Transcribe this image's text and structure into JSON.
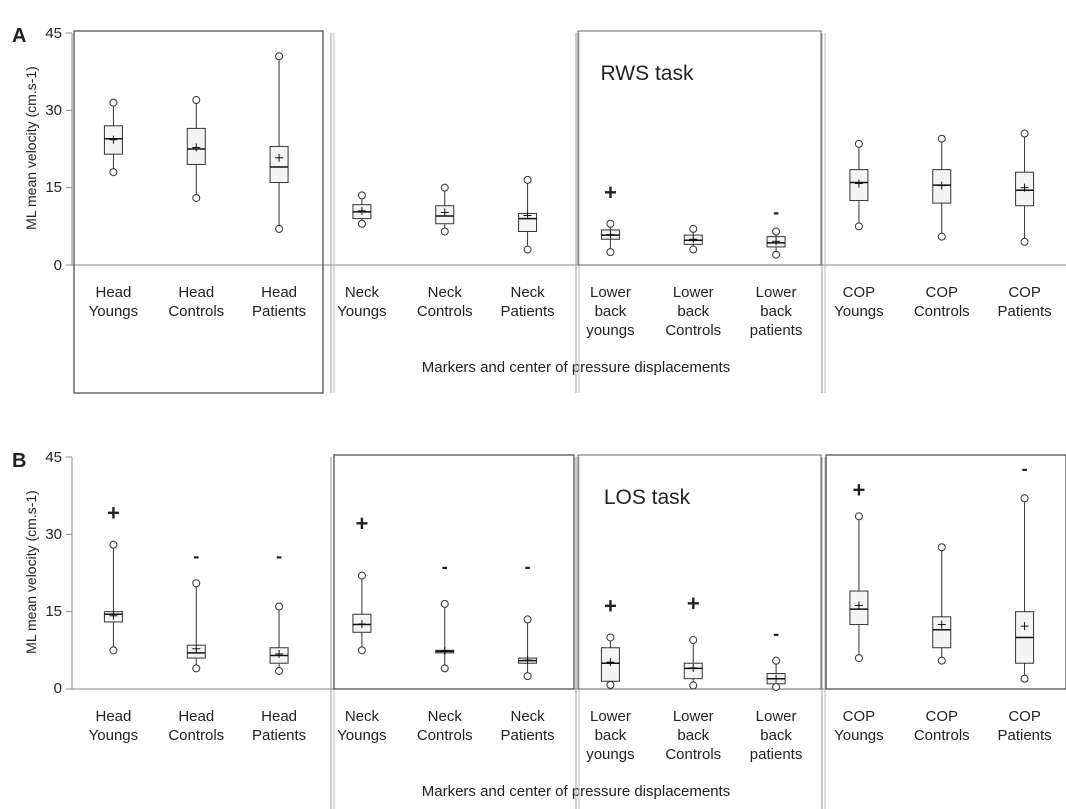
{
  "chart_data": [
    {
      "type": "boxplot",
      "panel_label": "A",
      "title": "RWS task",
      "ylabel": "ML mean velocity (cm.s-1)",
      "xlabel": "Markers and center of pressure displacements",
      "ylim": [
        0,
        45
      ],
      "yticks": [
        "0",
        "15",
        "30",
        "45"
      ],
      "categories": [
        [
          "Head",
          "Youngs"
        ],
        [
          "Head",
          "Controls"
        ],
        [
          "Head",
          "Patients"
        ],
        [
          "Neck",
          "Youngs"
        ],
        [
          "Neck",
          "Controls"
        ],
        [
          "Neck",
          "Patients"
        ],
        [
          "Lower",
          "back",
          "youngs"
        ],
        [
          "Lower",
          "back",
          "Controls"
        ],
        [
          "Lower",
          "back",
          "patients"
        ],
        [
          "COP",
          "Youngs"
        ],
        [
          "COP",
          "Controls"
        ],
        [
          "COP",
          "Patients"
        ]
      ],
      "boxes": [
        {
          "min": 18,
          "q1": 21.5,
          "median": 24.5,
          "q3": 27,
          "max": 31.5,
          "mean": 24.3
        },
        {
          "min": 13,
          "q1": 19.5,
          "median": 22.5,
          "q3": 26.5,
          "max": 32,
          "mean": 22.8
        },
        {
          "min": 7,
          "q1": 16,
          "median": 19,
          "q3": 23,
          "max": 40.5,
          "mean": 20.8
        },
        {
          "min": 8,
          "q1": 9,
          "median": 10.3,
          "q3": 11.7,
          "max": 13.5,
          "mean": 10.5
        },
        {
          "min": 6.5,
          "q1": 8,
          "median": 9.5,
          "q3": 11.5,
          "max": 15,
          "mean": 10.2
        },
        {
          "min": 3,
          "q1": 6.5,
          "median": 9,
          "q3": 10,
          "max": 16.5,
          "mean": 9.6
        },
        {
          "min": 2.5,
          "q1": 5,
          "median": 5.8,
          "q3": 6.8,
          "max": 8,
          "mean": 5.9
        },
        {
          "min": 3,
          "q1": 4,
          "median": 4.8,
          "q3": 5.8,
          "max": 7,
          "mean": 5.0
        },
        {
          "min": 2,
          "q1": 3.5,
          "median": 4.3,
          "q3": 5.5,
          "max": 6.5,
          "mean": 4.6
        },
        {
          "min": 7.5,
          "q1": 12.5,
          "median": 16,
          "q3": 18.5,
          "max": 23.5,
          "mean": 15.8
        },
        {
          "min": 5.5,
          "q1": 12,
          "median": 15.5,
          "q3": 18.5,
          "max": 24.5,
          "mean": 15.4
        },
        {
          "min": 4.5,
          "q1": 11.5,
          "median": 14.5,
          "q3": 18,
          "max": 25.5,
          "mean": 15.0
        }
      ],
      "markers": [
        {
          "index": 6,
          "symbol": "+",
          "y": 14
        },
        {
          "index": 8,
          "symbol": "-",
          "y": 10.5
        }
      ]
    },
    {
      "type": "boxplot",
      "panel_label": "B",
      "title": "LOS task",
      "ylabel": "ML mean velocity (cm.s-1)",
      "xlabel": "Markers and center of pressure displacements",
      "ylim": [
        0,
        45
      ],
      "yticks": [
        "0",
        "15",
        "30",
        "45"
      ],
      "categories": [
        [
          "Head",
          "Youngs"
        ],
        [
          "Head",
          "Controls"
        ],
        [
          "Head",
          "Patients"
        ],
        [
          "Neck",
          "Youngs"
        ],
        [
          "Neck",
          "Controls"
        ],
        [
          "Neck",
          "Patients"
        ],
        [
          "Lower",
          "back",
          "youngs"
        ],
        [
          "Lower",
          "back",
          "Controls"
        ],
        [
          "Lower",
          "back",
          "patients"
        ],
        [
          "COP",
          "Youngs"
        ],
        [
          "COP",
          "Controls"
        ],
        [
          "COP",
          "Patients"
        ]
      ],
      "boxes": [
        {
          "min": 7.5,
          "q1": 13,
          "median": 14.5,
          "q3": 15,
          "max": 28,
          "mean": 14.2
        },
        {
          "min": 4,
          "q1": 6,
          "median": 7,
          "q3": 8.5,
          "max": 20.5,
          "mean": 7.8
        },
        {
          "min": 3.5,
          "q1": 5,
          "median": 6.5,
          "q3": 8,
          "max": 16,
          "mean": 6.8
        },
        {
          "min": 7.5,
          "q1": 11,
          "median": 12.5,
          "q3": 14.5,
          "max": 22,
          "mean": 12.6
        },
        {
          "min": 4,
          "q1": 7,
          "median": 7.3,
          "q3": 7.5,
          "max": 16.5,
          "mean": 7.4
        },
        {
          "min": 2.5,
          "q1": 5,
          "median": 5.5,
          "q3": 6,
          "max": 13.5,
          "mean": 5.6
        },
        {
          "min": 0.8,
          "q1": 1.5,
          "median": 5,
          "q3": 8,
          "max": 10,
          "mean": 5.2
        },
        {
          "min": 0.7,
          "q1": 2,
          "median": 4,
          "q3": 5,
          "max": 9.5,
          "mean": 4.1
        },
        {
          "min": 0.4,
          "q1": 1,
          "median": 2,
          "q3": 3,
          "max": 5.5,
          "mean": 2.0
        },
        {
          "min": 6,
          "q1": 12.5,
          "median": 15.5,
          "q3": 19,
          "max": 33.5,
          "mean": 16.2
        },
        {
          "min": 5.5,
          "q1": 8,
          "median": 11.5,
          "q3": 14,
          "max": 27.5,
          "mean": 12.5
        },
        {
          "min": 2,
          "q1": 5,
          "median": 10,
          "q3": 15,
          "max": 37,
          "mean": 12.2
        }
      ],
      "markers": [
        {
          "index": 0,
          "symbol": "+",
          "y": 34
        },
        {
          "index": 1,
          "symbol": "-",
          "y": 26
        },
        {
          "index": 2,
          "symbol": "-",
          "y": 26
        },
        {
          "index": 3,
          "symbol": "+",
          "y": 32
        },
        {
          "index": 4,
          "symbol": "-",
          "y": 24
        },
        {
          "index": 5,
          "symbol": "-",
          "y": 24
        },
        {
          "index": 6,
          "symbol": "+",
          "y": 16
        },
        {
          "index": 7,
          "symbol": "+",
          "y": 16.5
        },
        {
          "index": 8,
          "symbol": "-",
          "y": 11
        },
        {
          "index": 9,
          "symbol": "+",
          "y": 38.5
        },
        {
          "index": 11,
          "symbol": "-",
          "y": 43
        }
      ]
    }
  ]
}
